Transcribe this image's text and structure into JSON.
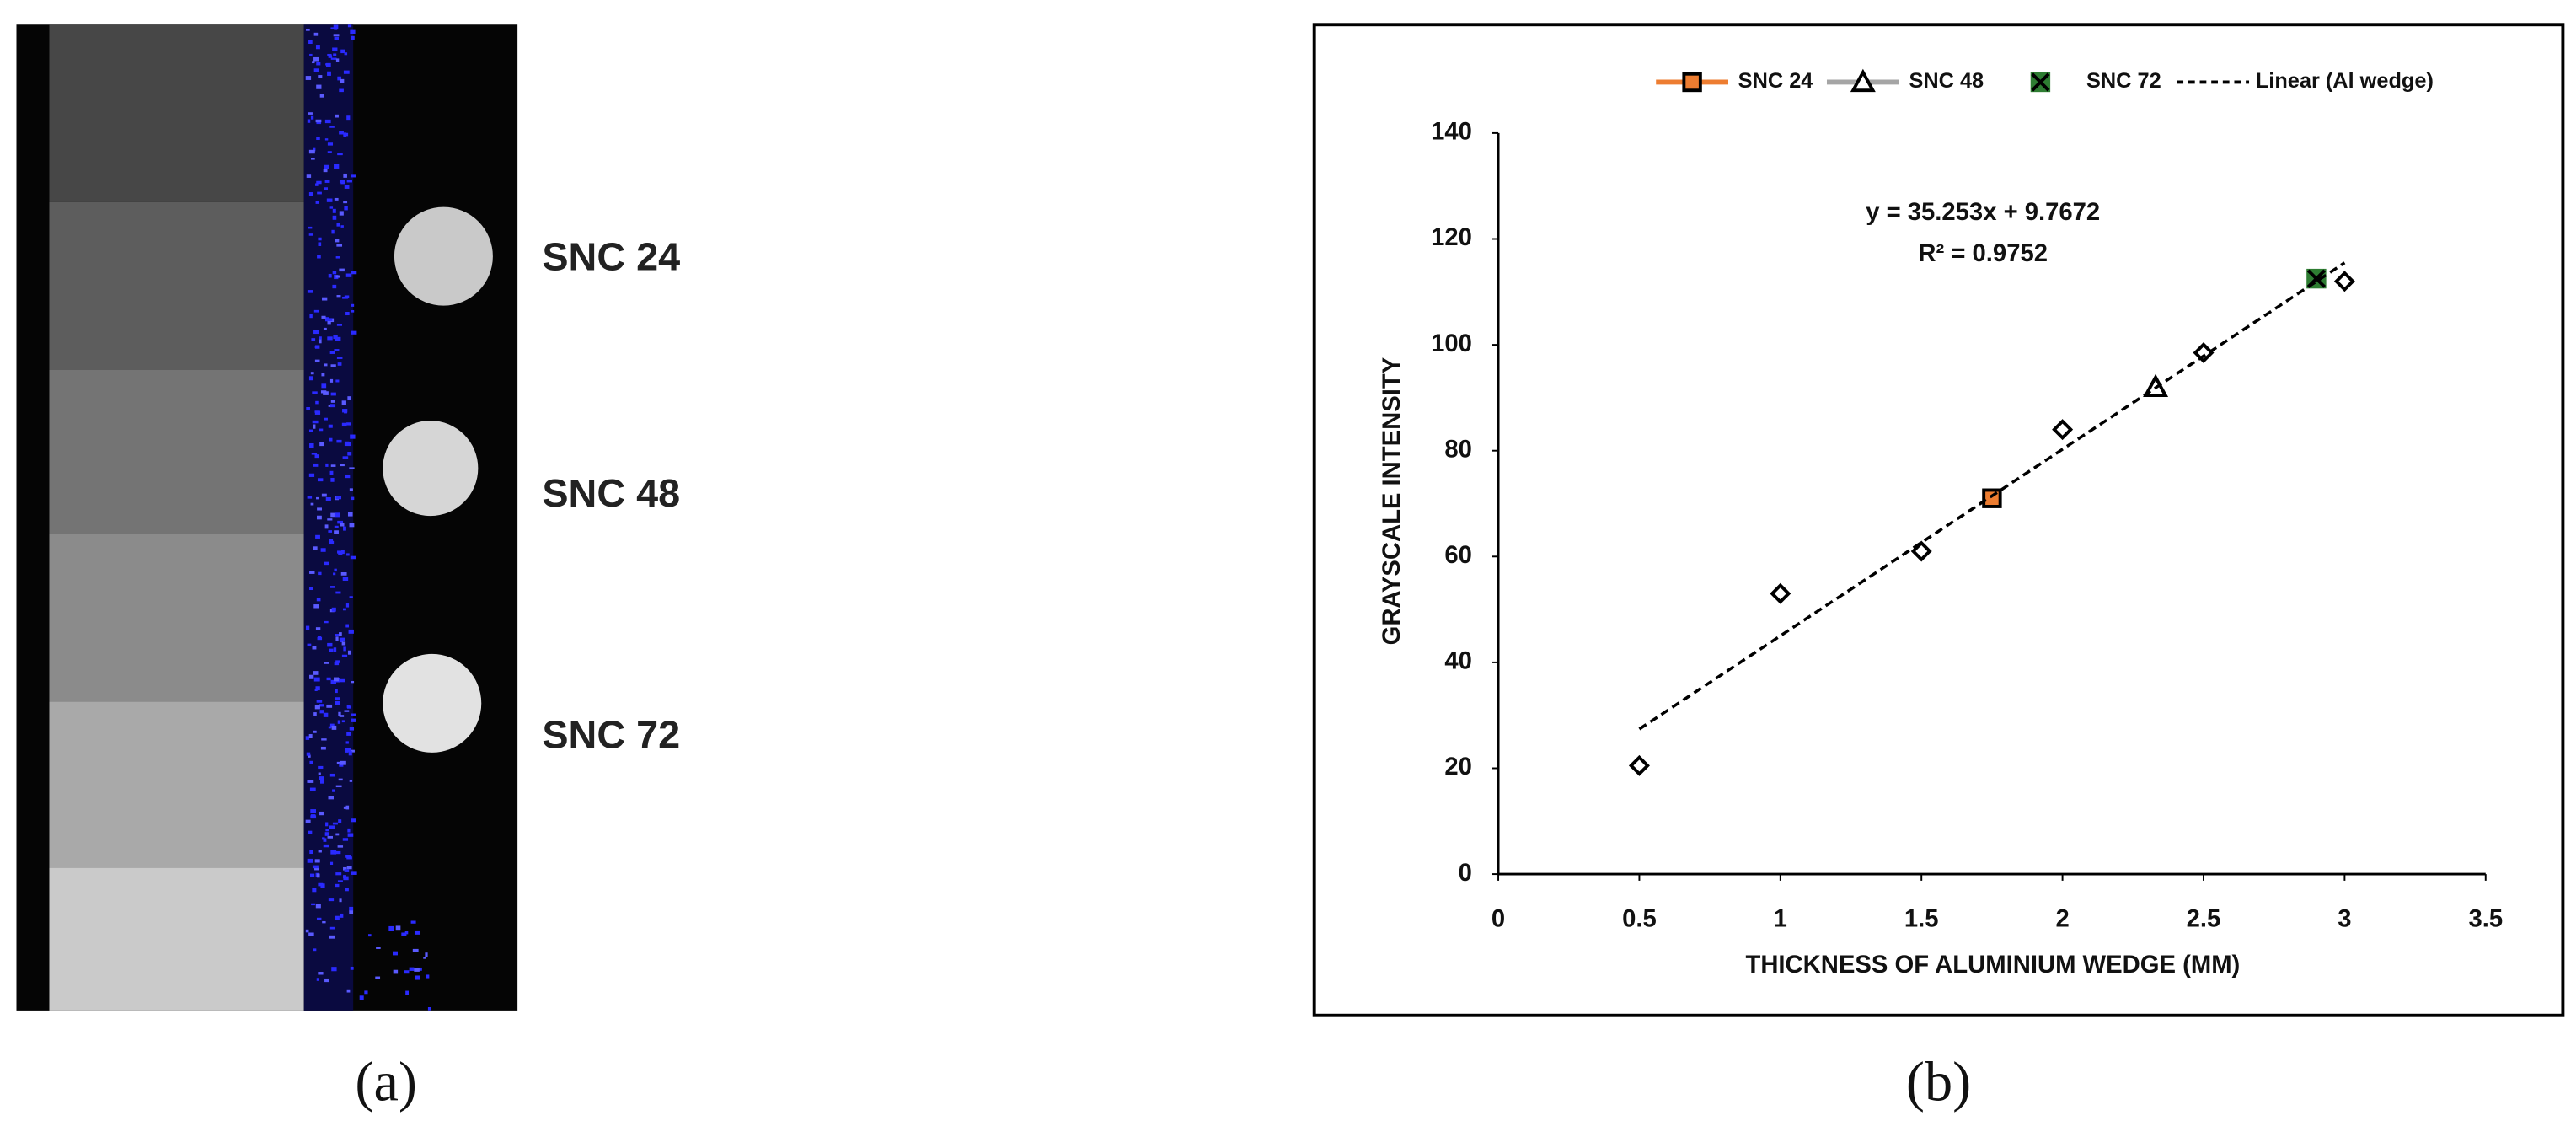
{
  "panel_a": {
    "labels": [
      "SNC 24",
      "SNC 48",
      "SNC 72"
    ],
    "caption": "(a)"
  },
  "chart_data": {
    "type": "scatter",
    "caption": "(b)",
    "xlabel": "THICKNESS OF ALUMINIUM WEDGE (MM)",
    "ylabel": "GRAYSCALE INTENSITY",
    "annotations": [
      "y = 35.253x + 9.7672",
      "R² = 0.9752"
    ],
    "xlim": [
      0,
      3.5
    ],
    "xticks": [
      0,
      0.5,
      1,
      1.5,
      2,
      2.5,
      3,
      3.5
    ],
    "ylim": [
      0,
      140
    ],
    "yticks": [
      0,
      20,
      40,
      60,
      80,
      100,
      120,
      140
    ],
    "grid": false,
    "legend": "top",
    "series": [
      {
        "marker": "diamond",
        "color": "#000000",
        "marker_fill": "#ffffff",
        "x": [
          0.5,
          1,
          1.5,
          2,
          2.5,
          3
        ],
        "values": [
          20.5,
          53,
          61,
          84,
          98.5,
          112
        ]
      },
      {
        "name": "SNC 24",
        "marker": "square",
        "color": "#ed7d31",
        "marker_fill": "#ed7d31",
        "legend_line": true,
        "x": [
          1.75
        ],
        "values": [
          71
        ]
      },
      {
        "name": "SNC 48",
        "marker": "triangle",
        "color": "#a5a5a5",
        "marker_fill": "#ffffff",
        "legend_line": true,
        "x": [
          2.33
        ],
        "values": [
          92
        ]
      },
      {
        "name": "SNC 72",
        "marker": "cross",
        "color": "#2e7d32",
        "marker_fill": "#2e7d32",
        "legend_line": false,
        "x": [
          2.9
        ],
        "values": [
          112.5
        ]
      },
      {
        "name": "Linear (Al wedge)",
        "marker": "none",
        "line": "dashed",
        "color": "#000000",
        "legend_line": true,
        "x": [
          0.5,
          3
        ],
        "values": [
          27.4,
          115.5
        ]
      }
    ]
  }
}
